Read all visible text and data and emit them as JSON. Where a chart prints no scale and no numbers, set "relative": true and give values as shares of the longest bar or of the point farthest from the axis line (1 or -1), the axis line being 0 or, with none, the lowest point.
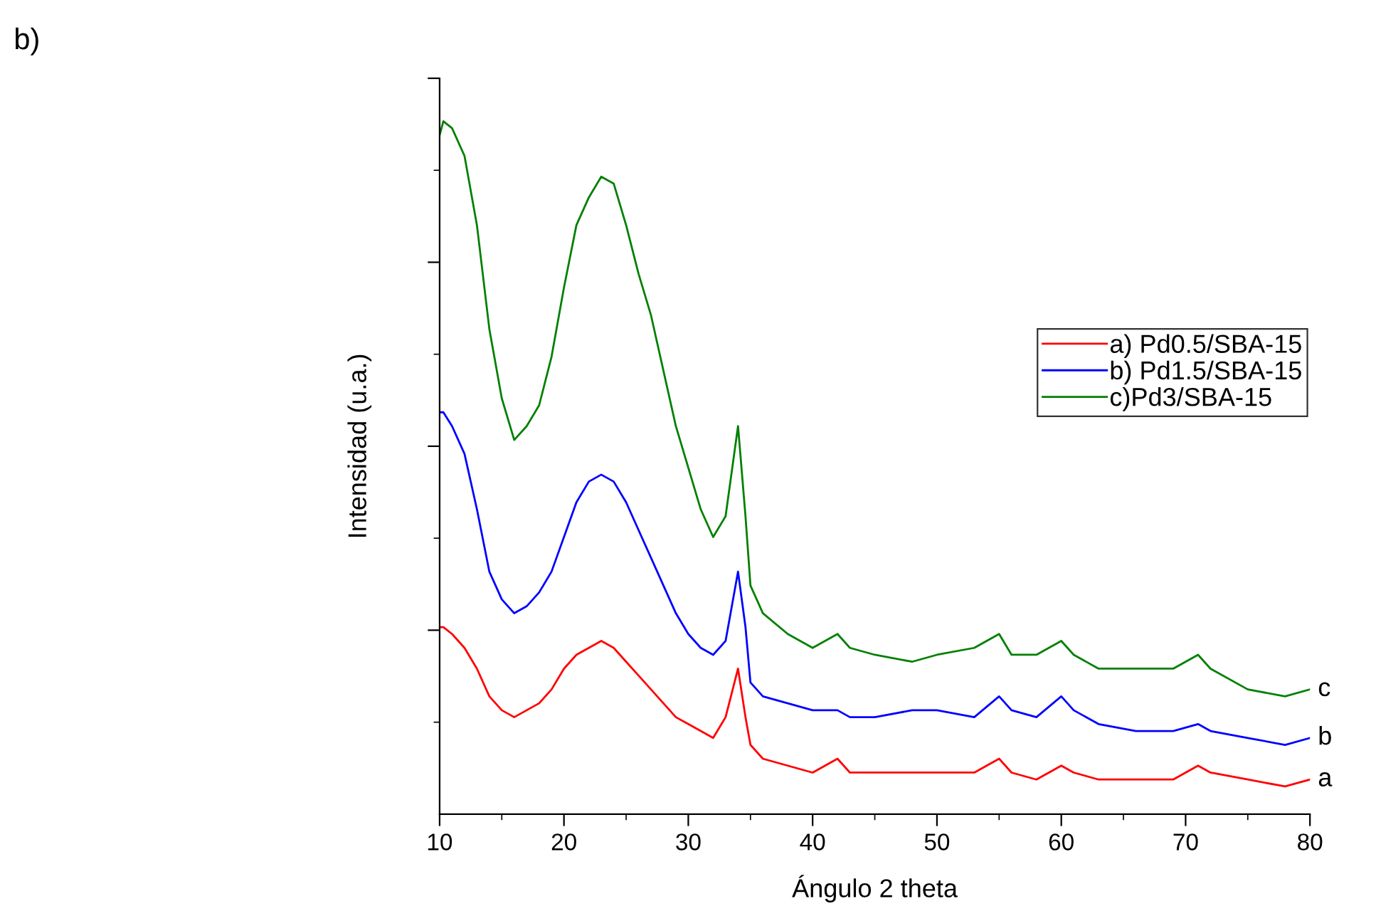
{
  "chart_data": {
    "type": "line",
    "relative": true,
    "xlabel": "Ángulo 2 theta",
    "ylabel": "Intensidad (u.a.)",
    "xlim": [
      10,
      80
    ],
    "xticks": [
      10,
      20,
      30,
      40,
      50,
      60,
      70,
      80
    ],
    "grid": false,
    "legend": "right",
    "marker": "none",
    "line_style": "solid",
    "annotations": [
      "b)",
      "c",
      "b",
      "a"
    ],
    "x": [
      10,
      10.3,
      11,
      12,
      13,
      14,
      15,
      16,
      17,
      18,
      19,
      20,
      21,
      22,
      23,
      24,
      25,
      26,
      27,
      28,
      29,
      30,
      31,
      32,
      33,
      34,
      34.6,
      35,
      36,
      38,
      40,
      42,
      43,
      45,
      48,
      50,
      53,
      55,
      56,
      58,
      60,
      61,
      63,
      66,
      69,
      71,
      72,
      75,
      78,
      80
    ],
    "series": [
      {
        "name": "a) Pd0.5/SBA-15",
        "color": "#ff0000",
        "values": [
          0.27,
          0.27,
          0.26,
          0.24,
          0.21,
          0.17,
          0.15,
          0.14,
          0.15,
          0.16,
          0.18,
          0.21,
          0.23,
          0.24,
          0.25,
          0.24,
          0.22,
          0.2,
          0.18,
          0.16,
          0.14,
          0.13,
          0.12,
          0.11,
          0.14,
          0.21,
          0.14,
          0.1,
          0.08,
          0.07,
          0.06,
          0.08,
          0.06,
          0.06,
          0.06,
          0.06,
          0.06,
          0.08,
          0.06,
          0.05,
          0.07,
          0.06,
          0.05,
          0.05,
          0.05,
          0.07,
          0.06,
          0.05,
          0.04,
          0.05
        ]
      },
      {
        "name": "b) Pd1.5/SBA-15",
        "color": "#0000ff",
        "values": [
          0.58,
          0.58,
          0.56,
          0.52,
          0.44,
          0.35,
          0.31,
          0.29,
          0.3,
          0.32,
          0.35,
          0.4,
          0.45,
          0.48,
          0.49,
          0.48,
          0.45,
          0.41,
          0.37,
          0.33,
          0.29,
          0.26,
          0.24,
          0.23,
          0.25,
          0.35,
          0.27,
          0.19,
          0.17,
          0.16,
          0.15,
          0.15,
          0.14,
          0.14,
          0.15,
          0.15,
          0.14,
          0.17,
          0.15,
          0.14,
          0.17,
          0.15,
          0.13,
          0.12,
          0.12,
          0.13,
          0.12,
          0.11,
          0.1,
          0.11
        ]
      },
      {
        "name": "c)Pd3/SBA-15",
        "color": "#008000",
        "values": [
          0.98,
          1.0,
          0.99,
          0.95,
          0.85,
          0.7,
          0.6,
          0.54,
          0.56,
          0.59,
          0.66,
          0.76,
          0.85,
          0.89,
          0.92,
          0.91,
          0.85,
          0.78,
          0.72,
          0.64,
          0.56,
          0.5,
          0.44,
          0.4,
          0.43,
          0.56,
          0.43,
          0.33,
          0.29,
          0.26,
          0.24,
          0.26,
          0.24,
          0.23,
          0.22,
          0.23,
          0.24,
          0.26,
          0.23,
          0.23,
          0.25,
          0.23,
          0.21,
          0.21,
          0.21,
          0.23,
          0.21,
          0.18,
          0.17,
          0.18
        ]
      }
    ]
  }
}
